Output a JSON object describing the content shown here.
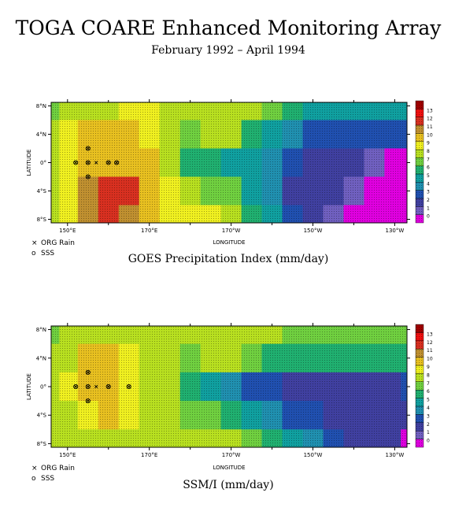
{
  "title": "TOGA COARE Enhanced Monitoring Array",
  "subtitle": "February 1992 – April 1994",
  "legend": {
    "org_rain": "ORG Rain",
    "sss": "SSS",
    "org_rain_marker": "×",
    "sss_marker": "o"
  },
  "colorbar": {
    "levels": [
      "0",
      "1",
      "2",
      "3",
      "4",
      "5",
      "6",
      "7",
      "8",
      "9",
      "10",
      "11",
      "12",
      "13"
    ],
    "colors": [
      "#e000e0",
      "#7060c0",
      "#4040a0",
      "#2050b0",
      "#2090b0",
      "#10a0a0",
      "#20b070",
      "#70d040",
      "#b8e020",
      "#f0f020",
      "#e8c020",
      "#c09030",
      "#d83020",
      "#f01010",
      "#a00000"
    ]
  },
  "chart_data": [
    {
      "type": "heatmap",
      "caption": "GOES Precipitation Index (mm/day)",
      "xlabel": "LONGITUDE",
      "ylabel": "LATITUDE",
      "x_ticks": [
        "150°E",
        "170°E",
        "170°W",
        "150°W",
        "130°W"
      ],
      "y_ticks": [
        "8°N",
        "4°N",
        "0°",
        "4°S",
        "8°S"
      ],
      "xlim": [
        146,
        233
      ],
      "ylim": [
        -8.5,
        8.5
      ],
      "grid_lon": [
        146,
        150,
        155,
        160,
        165,
        170,
        175,
        180,
        185,
        190,
        195,
        200,
        205,
        210,
        215,
        220,
        225,
        230,
        233
      ],
      "grid_lat": [
        8,
        4,
        0,
        -4,
        -8
      ],
      "values": [
        [
          7,
          8,
          8,
          8,
          9,
          9,
          8,
          8,
          8,
          8,
          8,
          7,
          6,
          5,
          5,
          5,
          5,
          5,
          5
        ],
        [
          8,
          9,
          10,
          10,
          10,
          9,
          8,
          7,
          8,
          8,
          6,
          5,
          4,
          3,
          3,
          3,
          3,
          3,
          3
        ],
        [
          8,
          9,
          10,
          10,
          10,
          10,
          8,
          6,
          6,
          5,
          5,
          4,
          3,
          2,
          2,
          2,
          1,
          0,
          0
        ],
        [
          8,
          9,
          11,
          12,
          12,
          10,
          9,
          8,
          7,
          7,
          5,
          4,
          2,
          2,
          2,
          1,
          0,
          0,
          0
        ],
        [
          8,
          9,
          11,
          12,
          11,
          10,
          9,
          9,
          9,
          8,
          6,
          5,
          3,
          2,
          1,
          0,
          0,
          0,
          0
        ]
      ],
      "org_rain_sites": [
        [
          152,
          0
        ],
        [
          155,
          0
        ],
        [
          157,
          0
        ],
        [
          160,
          0
        ],
        [
          162,
          0
        ],
        [
          155,
          2
        ],
        [
          155,
          -2
        ]
      ],
      "sss_sites": [
        [
          152,
          0
        ],
        [
          155,
          0
        ],
        [
          160,
          0
        ],
        [
          162,
          0
        ],
        [
          155,
          2
        ],
        [
          155,
          -2
        ]
      ]
    },
    {
      "type": "heatmap",
      "caption": "SSM/I (mm/day)",
      "xlabel": "LONGITUDE",
      "ylabel": "LATITUDE",
      "x_ticks": [
        "150°E",
        "170°E",
        "170°W",
        "150°W",
        "130°W"
      ],
      "y_ticks": [
        "8°N",
        "4°N",
        "0°",
        "4°S",
        "8°S"
      ],
      "xlim": [
        146,
        233
      ],
      "ylim": [
        -8.5,
        8.5
      ],
      "grid_lon": [
        146,
        150,
        155,
        160,
        165,
        170,
        175,
        180,
        185,
        190,
        195,
        200,
        205,
        210,
        215,
        220,
        225,
        230,
        233
      ],
      "grid_lat": [
        8,
        4,
        0,
        -4,
        -8
      ],
      "values": [
        [
          7,
          8,
          8,
          8,
          8,
          8,
          8,
          8,
          8,
          8,
          8,
          8,
          7,
          7,
          7,
          7,
          7,
          7,
          7
        ],
        [
          8,
          8,
          10,
          10,
          9,
          8,
          8,
          7,
          8,
          8,
          7,
          6,
          6,
          6,
          6,
          6,
          6,
          6,
          6
        ],
        [
          8,
          9,
          10,
          10,
          9,
          8,
          8,
          6,
          5,
          4,
          3,
          3,
          2,
          2,
          2,
          2,
          2,
          2,
          3
        ],
        [
          8,
          8,
          9,
          10,
          9,
          8,
          8,
          7,
          7,
          6,
          5,
          4,
          3,
          3,
          2,
          2,
          2,
          2,
          2
        ],
        [
          8,
          8,
          8,
          8,
          8,
          8,
          8,
          8,
          8,
          8,
          7,
          6,
          5,
          4,
          3,
          2,
          2,
          2,
          0
        ]
      ],
      "org_rain_sites": [
        [
          152,
          0
        ],
        [
          155,
          0
        ],
        [
          157,
          0
        ],
        [
          160,
          0
        ],
        [
          165,
          0
        ],
        [
          155,
          2
        ],
        [
          155,
          -2
        ]
      ],
      "sss_sites": [
        [
          152,
          0
        ],
        [
          155,
          0
        ],
        [
          160,
          0
        ],
        [
          165,
          0
        ],
        [
          155,
          2
        ],
        [
          155,
          -2
        ]
      ]
    }
  ]
}
